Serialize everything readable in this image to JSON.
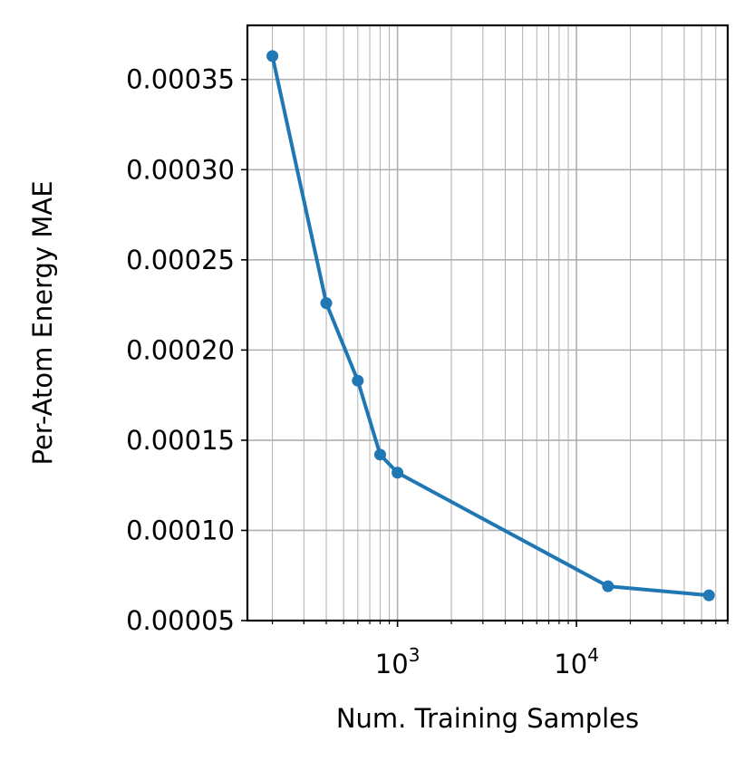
{
  "chart_data": {
    "type": "line",
    "xlabel": "Num. Training Samples",
    "ylabel": "Per-Atom Energy MAE",
    "xscale": "log",
    "xlim": [
      145,
      70000
    ],
    "ylim": [
      5e-05,
      0.00038
    ],
    "grid": true,
    "grid_minor_x": true,
    "x_major_ticks": [
      {
        "base": "10",
        "exp": "3",
        "value": 1000
      },
      {
        "base": "10",
        "exp": "4",
        "value": 10000
      }
    ],
    "y_ticks": [
      {
        "label": "0.00005",
        "value": 5e-05
      },
      {
        "label": "0.00010",
        "value": 0.0001
      },
      {
        "label": "0.00015",
        "value": 0.00015
      },
      {
        "label": "0.00020",
        "value": 0.0002
      },
      {
        "label": "0.00025",
        "value": 0.00025
      },
      {
        "label": "0.00030",
        "value": 0.0003
      },
      {
        "label": "0.00035",
        "value": 0.00035
      }
    ],
    "series": [
      {
        "color": "#1f77b4",
        "marker": "circle",
        "points": [
          {
            "x": 200,
            "y": 0.000363
          },
          {
            "x": 400,
            "y": 0.000226
          },
          {
            "x": 600,
            "y": 0.000183
          },
          {
            "x": 800,
            "y": 0.000142
          },
          {
            "x": 1000,
            "y": 0.000132
          },
          {
            "x": 15000,
            "y": 6.9e-05
          },
          {
            "x": 55000,
            "y": 6.4e-05
          }
        ]
      }
    ]
  }
}
